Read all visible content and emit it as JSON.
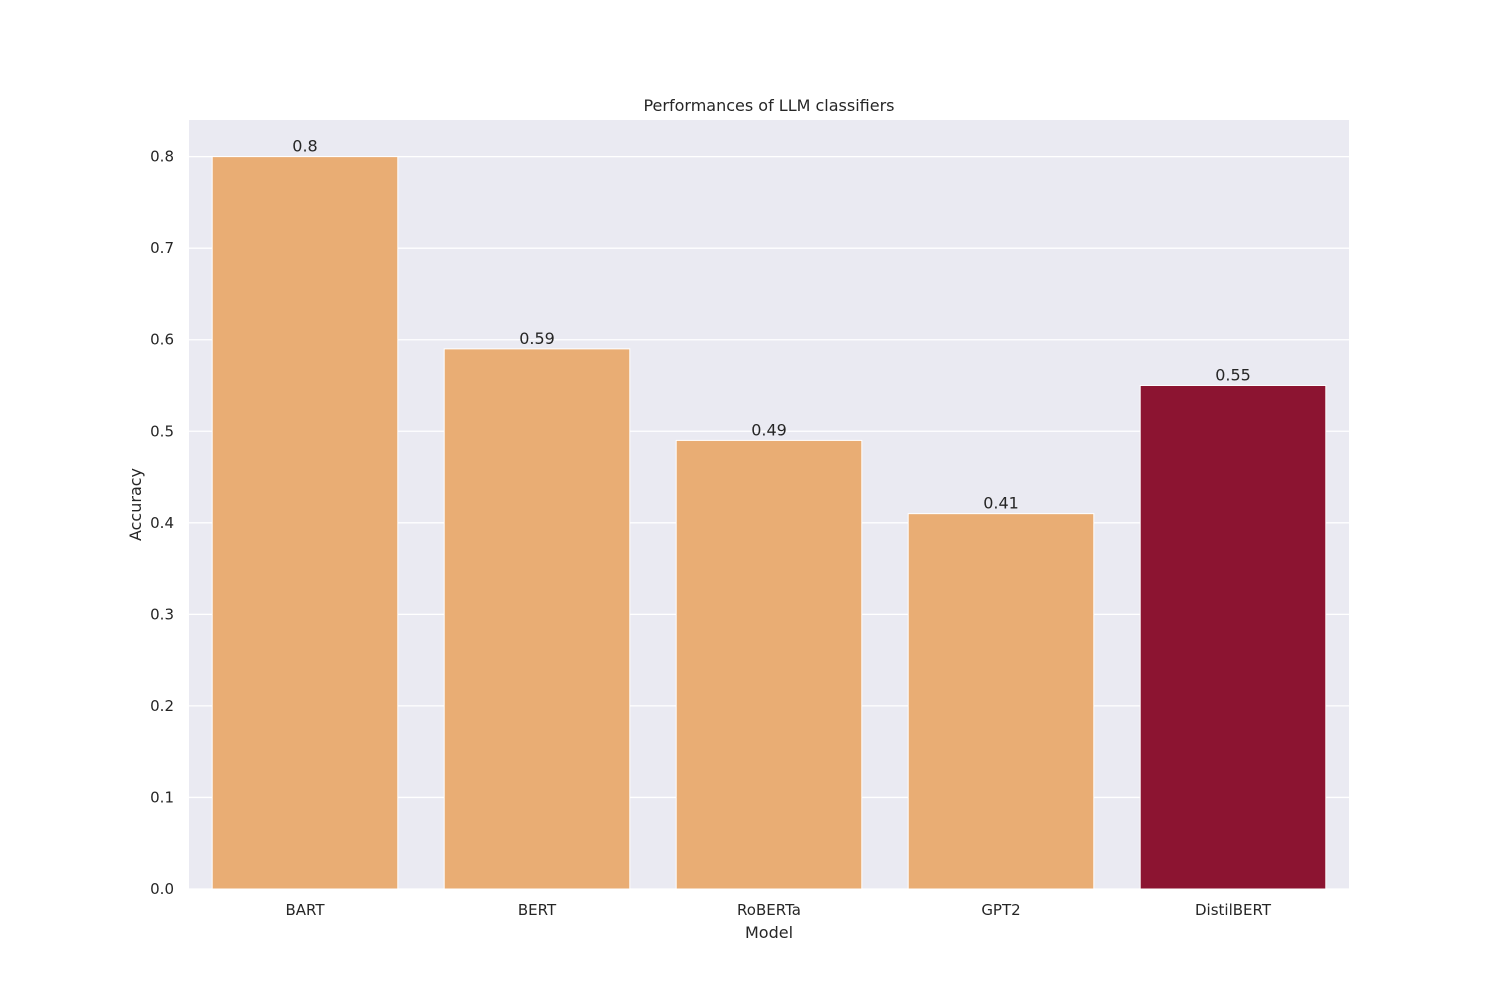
{
  "chart_data": {
    "type": "bar",
    "title": "Performances of LLM classifiers",
    "xlabel": "Model",
    "ylabel": "Accuracy",
    "categories": [
      "BART",
      "BERT",
      "RoBERTa",
      "GPT2",
      "DistilBERT"
    ],
    "values": [
      0.8,
      0.59,
      0.49,
      0.41,
      0.55
    ],
    "data_labels": [
      "0.8",
      "0.59",
      "0.49",
      "0.41",
      "0.55"
    ],
    "ylim": [
      0,
      0.84
    ],
    "yticks": [
      0.0,
      0.1,
      0.2,
      0.3,
      0.4,
      0.5,
      0.6,
      0.7,
      0.8
    ],
    "ytick_labels": [
      "0.0",
      "0.1",
      "0.2",
      "0.3",
      "0.4",
      "0.5",
      "0.6",
      "0.7",
      "0.8"
    ],
    "grid": true,
    "colors": {
      "plot_background": "#eaeaf2",
      "grid": "#ffffff",
      "bar_default": "#e9ad74",
      "bar_highlight": "#8c1431"
    },
    "bar_colors": [
      "#e9ad74",
      "#e9ad74",
      "#e9ad74",
      "#e9ad74",
      "#8c1431"
    ]
  }
}
